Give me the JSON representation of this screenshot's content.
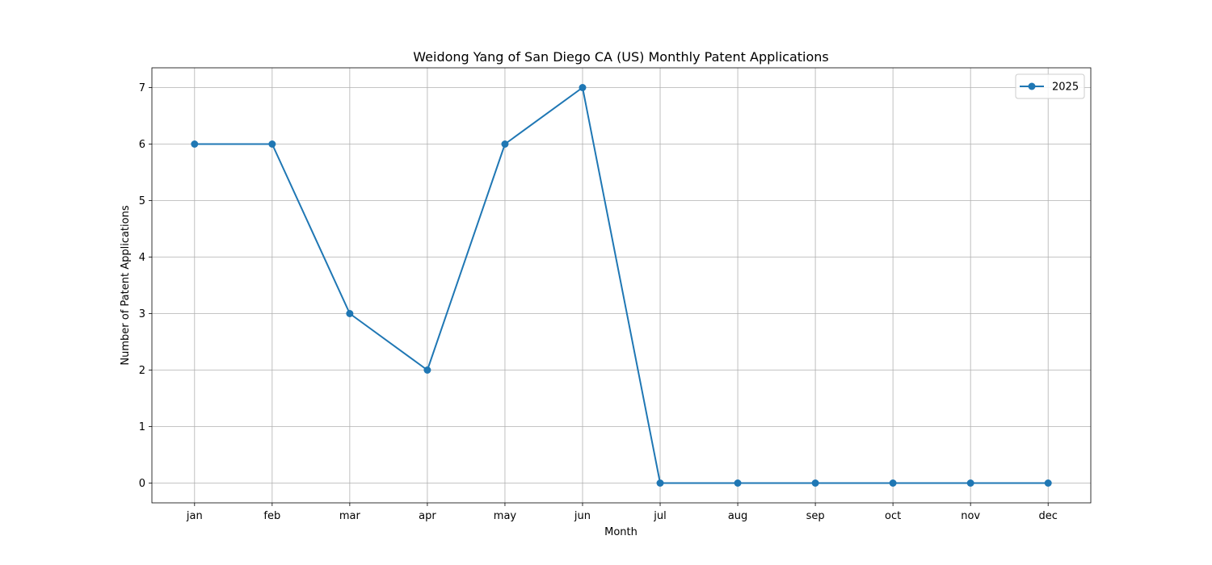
{
  "chart_data": {
    "type": "line",
    "title": "Weidong Yang of San Diego CA (US) Monthly Patent Applications",
    "xlabel": "Month",
    "ylabel": "Number of Patent Applications",
    "categories": [
      "jan",
      "feb",
      "mar",
      "apr",
      "may",
      "jun",
      "jul",
      "aug",
      "sep",
      "oct",
      "nov",
      "dec"
    ],
    "series": [
      {
        "name": "2025",
        "values": [
          6,
          6,
          3,
          2,
          6,
          7,
          0,
          0,
          0,
          0,
          0,
          0
        ],
        "color": "#1f77b4"
      }
    ],
    "ylim": [
      -0.35,
      7.35
    ],
    "yticks": [
      0,
      1,
      2,
      3,
      4,
      5,
      6,
      7
    ],
    "grid": true,
    "legend_position": "top-right",
    "marker": "circle"
  }
}
